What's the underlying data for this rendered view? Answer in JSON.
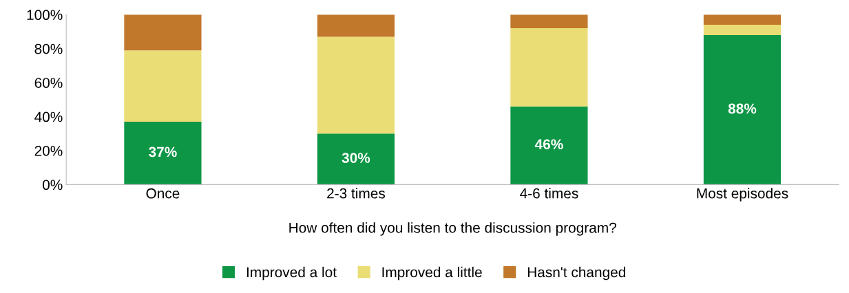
{
  "chart_data": {
    "type": "bar",
    "stacked": true,
    "xlabel": "How often did you listen to the discussion program?",
    "categories": [
      "Once",
      "2-3 times",
      "4-6 times",
      "Most episodes"
    ],
    "series": [
      {
        "name": "Improved a lot",
        "color": "#0e9647",
        "values": [
          37,
          30,
          46,
          88
        ],
        "value_labels": [
          "37%",
          "30%",
          "46%",
          "88%"
        ]
      },
      {
        "name": "Improved a little",
        "color": "#eadd76",
        "values": [
          42,
          57,
          46,
          6
        ]
      },
      {
        "name": "Hasn't changed",
        "color": "#c2782b",
        "values": [
          21,
          13,
          8,
          6
        ]
      }
    ],
    "ylim": [
      0,
      100
    ],
    "yticks": [
      {
        "value": 0,
        "label": "0%"
      },
      {
        "value": 20,
        "label": "20%"
      },
      {
        "value": 40,
        "label": "40%"
      },
      {
        "value": 60,
        "label": "60%"
      },
      {
        "value": 80,
        "label": "80%"
      },
      {
        "value": 100,
        "label": "100%"
      }
    ],
    "grid": false,
    "legend": "bottom"
  }
}
